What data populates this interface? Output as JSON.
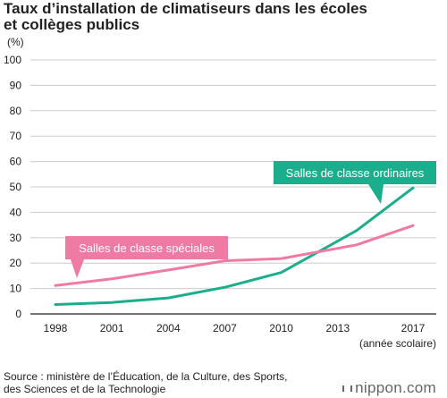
{
  "title": {
    "line1": "Taux d’installation de climatiseurs dans les écoles",
    "line2": "et collèges publics"
  },
  "footer": {
    "source_line1": "Source : ministère de l’Éducation, de la Culture, des Sports,",
    "source_line2": "des Sciences et de la Technologie",
    "brand": "nippon.com"
  },
  "colors": {
    "green": "#1aae8c",
    "pink": "#ef7aa4",
    "axis": "#222222",
    "grid": "#cccccc"
  },
  "chart_data": {
    "type": "line",
    "title": "Taux d’installation de climatiseurs dans les écoles et collèges publics",
    "ylabel": "(%)",
    "xlabel": "(année scolaire)",
    "ylim": [
      0,
      100
    ],
    "yticks": [
      "0",
      "10",
      "20",
      "30",
      "40",
      "50",
      "60",
      "70",
      "80",
      "90",
      "100"
    ],
    "xticks": [
      "1998",
      "2001",
      "2004",
      "2007",
      "2010",
      "2013",
      "2017"
    ],
    "grid": true,
    "series": [
      {
        "name": "Salles de classe ordinaires",
        "color": "#1aae8c",
        "points": [
          {
            "x": 1998,
            "y": 3.7
          },
          {
            "x": 2001,
            "y": 4.5
          },
          {
            "x": 2004,
            "y": 6.3
          },
          {
            "x": 2007,
            "y": 10.5
          },
          {
            "x": 2010,
            "y": 16.3
          },
          {
            "x": 2014,
            "y": 32.8
          },
          {
            "x": 2017,
            "y": 49.6
          }
        ]
      },
      {
        "name": "Salles de classe spéciales",
        "color": "#ef7aa4",
        "points": [
          {
            "x": 1998,
            "y": 11.2
          },
          {
            "x": 2001,
            "y": 13.8
          },
          {
            "x": 2004,
            "y": 17.3
          },
          {
            "x": 2007,
            "y": 20.9
          },
          {
            "x": 2010,
            "y": 21.8
          },
          {
            "x": 2014,
            "y": 27.2
          },
          {
            "x": 2017,
            "y": 34.8
          }
        ]
      }
    ]
  }
}
